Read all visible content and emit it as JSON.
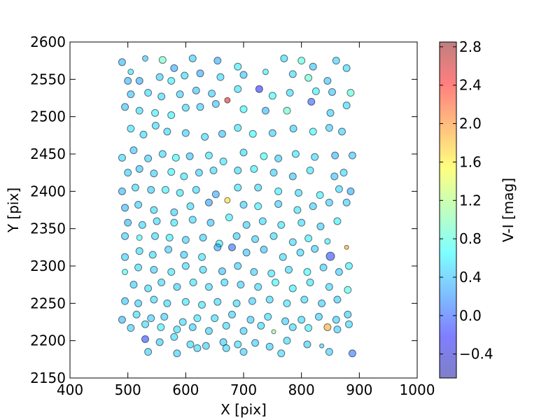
{
  "chart_data": {
    "type": "scatter",
    "xlabel": "X [pix]",
    "ylabel": "Y [pix]",
    "xlim": [
      400,
      1000
    ],
    "ylim": [
      2150,
      2600
    ],
    "xticks": [
      400,
      500,
      600,
      700,
      800,
      900,
      1000
    ],
    "yticks": [
      2150,
      2200,
      2250,
      2300,
      2350,
      2400,
      2450,
      2500,
      2550,
      2600
    ],
    "colorbar": {
      "label": "V-I [mag]",
      "range": [
        -0.65,
        2.85
      ],
      "ticks": [
        -0.4,
        0.0,
        0.4,
        0.8,
        1.2,
        1.6,
        2.0,
        2.4,
        2.8
      ],
      "colormap": "jet"
    },
    "grid": false,
    "points": [
      [
        490,
        2573,
        0.35,
        5
      ],
      [
        505,
        2560,
        0.55,
        4
      ],
      [
        530,
        2578,
        0.4,
        4
      ],
      [
        560,
        2576,
        0.9,
        5
      ],
      [
        580,
        2565,
        0.3,
        5
      ],
      [
        612,
        2578,
        0.45,
        5
      ],
      [
        655,
        2575,
        0.3,
        5
      ],
      [
        690,
        2567,
        0.6,
        5
      ],
      [
        770,
        2578,
        0.5,
        5
      ],
      [
        800,
        2575,
        0.8,
        5
      ],
      [
        820,
        2567,
        0.4,
        5
      ],
      [
        860,
        2575,
        0.45,
        5
      ],
      [
        878,
        2565,
        0.5,
        5
      ],
      [
        500,
        2548,
        0.35,
        5
      ],
      [
        520,
        2548,
        0.3,
        5
      ],
      [
        555,
        2553,
        0.45,
        5
      ],
      [
        575,
        2548,
        0.6,
        5
      ],
      [
        598,
        2555,
        0.5,
        5
      ],
      [
        625,
        2558,
        0.3,
        5
      ],
      [
        660,
        2553,
        0.5,
        5
      ],
      [
        700,
        2556,
        0.4,
        5
      ],
      [
        738,
        2560,
        0.6,
        4
      ],
      [
        785,
        2557,
        0.5,
        5
      ],
      [
        812,
        2552,
        0.85,
        5
      ],
      [
        845,
        2548,
        0.4,
        5
      ],
      [
        505,
        2530,
        0.4,
        5
      ],
      [
        535,
        2532,
        0.5,
        5
      ],
      [
        558,
        2527,
        0.5,
        5
      ],
      [
        590,
        2530,
        0.45,
        5
      ],
      [
        618,
        2535,
        0.4,
        5
      ],
      [
        645,
        2531,
        0.45,
        5
      ],
      [
        690,
        2537,
        0.55,
        5
      ],
      [
        727,
        2537,
        -0.2,
        5
      ],
      [
        750,
        2528,
        0.65,
        5
      ],
      [
        780,
        2532,
        0.5,
        5
      ],
      [
        825,
        2534,
        0.6,
        5
      ],
      [
        853,
        2533,
        0.4,
        5
      ],
      [
        885,
        2532,
        0.8,
        5
      ],
      [
        495,
        2513,
        0.4,
        5
      ],
      [
        520,
        2508,
        0.5,
        5
      ],
      [
        547,
        2505,
        0.6,
        5
      ],
      [
        575,
        2502,
        0.6,
        5
      ],
      [
        600,
        2512,
        0.5,
        5
      ],
      [
        625,
        2513,
        0.45,
        5
      ],
      [
        652,
        2517,
        0.4,
        5
      ],
      [
        672,
        2522,
        2.6,
        4
      ],
      [
        700,
        2510,
        0.65,
        5
      ],
      [
        738,
        2508,
        0.35,
        5
      ],
      [
        775,
        2508,
        0.85,
        5
      ],
      [
        817,
        2520,
        0.0,
        5
      ],
      [
        850,
        2505,
        0.45,
        5
      ],
      [
        878,
        2515,
        0.5,
        5
      ],
      [
        505,
        2484,
        0.55,
        5
      ],
      [
        527,
        2476,
        0.5,
        5
      ],
      [
        548,
        2488,
        0.5,
        5
      ],
      [
        568,
        2480,
        0.5,
        5
      ],
      [
        600,
        2478,
        0.45,
        5
      ],
      [
        633,
        2473,
        0.5,
        5
      ],
      [
        663,
        2477,
        0.4,
        5
      ],
      [
        690,
        2485,
        0.55,
        5
      ],
      [
        716,
        2477,
        0.65,
        5
      ],
      [
        750,
        2478,
        0.45,
        5
      ],
      [
        786,
        2484,
        0.45,
        5
      ],
      [
        820,
        2480,
        0.65,
        5
      ],
      [
        848,
        2485,
        0.45,
        5
      ],
      [
        870,
        2480,
        0.45,
        5
      ],
      [
        490,
        2445,
        0.5,
        5
      ],
      [
        510,
        2455,
        0.4,
        5
      ],
      [
        535,
        2444,
        0.45,
        5
      ],
      [
        560,
        2450,
        0.5,
        5
      ],
      [
        583,
        2445,
        0.65,
        5
      ],
      [
        607,
        2447,
        0.4,
        5
      ],
      [
        640,
        2448,
        0.55,
        5
      ],
      [
        665,
        2440,
        0.55,
        5
      ],
      [
        700,
        2452,
        0.5,
        5
      ],
      [
        735,
        2447,
        0.7,
        5
      ],
      [
        760,
        2444,
        0.45,
        5
      ],
      [
        790,
        2450,
        0.55,
        5
      ],
      [
        823,
        2446,
        0.5,
        5
      ],
      [
        858,
        2448,
        0.35,
        5
      ],
      [
        888,
        2448,
        0.4,
        5
      ],
      [
        500,
        2425,
        0.45,
        5
      ],
      [
        520,
        2430,
        0.4,
        5
      ],
      [
        545,
        2424,
        0.45,
        5
      ],
      [
        575,
        2426,
        0.6,
        5
      ],
      [
        597,
        2420,
        0.55,
        5
      ],
      [
        623,
        2425,
        0.45,
        5
      ],
      [
        648,
        2428,
        0.5,
        5
      ],
      [
        690,
        2428,
        0.5,
        5
      ],
      [
        718,
        2430,
        0.6,
        5
      ],
      [
        752,
        2425,
        0.45,
        5
      ],
      [
        785,
        2420,
        0.4,
        5
      ],
      [
        815,
        2428,
        0.55,
        5
      ],
      [
        857,
        2420,
        0.4,
        5
      ],
      [
        873,
        2425,
        0.5,
        5
      ],
      [
        490,
        2400,
        0.35,
        5
      ],
      [
        513,
        2405,
        0.5,
        5
      ],
      [
        540,
        2402,
        0.45,
        5
      ],
      [
        565,
        2402,
        0.6,
        5
      ],
      [
        590,
        2398,
        0.55,
        5
      ],
      [
        618,
        2402,
        0.5,
        5
      ],
      [
        652,
        2396,
        0.3,
        5
      ],
      [
        690,
        2405,
        0.55,
        5
      ],
      [
        725,
        2405,
        0.5,
        5
      ],
      [
        760,
        2400,
        0.6,
        5
      ],
      [
        795,
        2398,
        0.5,
        5
      ],
      [
        832,
        2395,
        0.6,
        5
      ],
      [
        865,
        2403,
        0.5,
        5
      ],
      [
        885,
        2400,
        0.3,
        5
      ],
      [
        495,
        2378,
        0.35,
        5
      ],
      [
        518,
        2382,
        0.45,
        5
      ],
      [
        545,
        2375,
        0.5,
        5
      ],
      [
        580,
        2372,
        0.45,
        5
      ],
      [
        608,
        2380,
        0.5,
        5
      ],
      [
        640,
        2385,
        0.25,
        5
      ],
      [
        672,
        2388,
        1.7,
        4
      ],
      [
        700,
        2382,
        0.45,
        5
      ],
      [
        725,
        2380,
        0.6,
        5
      ],
      [
        760,
        2383,
        0.45,
        5
      ],
      [
        793,
        2375,
        0.55,
        5
      ],
      [
        820,
        2380,
        0.45,
        5
      ],
      [
        848,
        2385,
        0.45,
        5
      ],
      [
        878,
        2385,
        0.45,
        5
      ],
      [
        500,
        2358,
        0.35,
        5
      ],
      [
        525,
        2355,
        0.5,
        5
      ],
      [
        550,
        2360,
        0.5,
        5
      ],
      [
        580,
        2358,
        0.55,
        5
      ],
      [
        612,
        2362,
        0.5,
        5
      ],
      [
        643,
        2358,
        0.4,
        5
      ],
      [
        675,
        2365,
        0.6,
        5
      ],
      [
        705,
        2355,
        0.45,
        5
      ],
      [
        733,
        2360,
        0.5,
        5
      ],
      [
        765,
        2355,
        0.55,
        5
      ],
      [
        800,
        2358,
        0.5,
        5
      ],
      [
        833,
        2353,
        0.45,
        5
      ],
      [
        862,
        2360,
        0.6,
        5
      ],
      [
        495,
        2340,
        0.45,
        5
      ],
      [
        520,
        2338,
        0.7,
        4
      ],
      [
        547,
        2340,
        0.5,
        5
      ],
      [
        572,
        2338,
        0.6,
        5
      ],
      [
        600,
        2335,
        0.45,
        5
      ],
      [
        630,
        2338,
        0.45,
        5
      ],
      [
        658,
        2330,
        0.6,
        5
      ],
      [
        688,
        2340,
        0.45,
        5
      ],
      [
        720,
        2336,
        0.45,
        5
      ],
      [
        752,
        2340,
        0.5,
        5
      ],
      [
        785,
        2332,
        0.5,
        5
      ],
      [
        812,
        2337,
        0.6,
        5
      ],
      [
        845,
        2333,
        0.6,
        4
      ],
      [
        495,
        2312,
        0.45,
        5
      ],
      [
        520,
        2320,
        0.5,
        5
      ],
      [
        543,
        2315,
        0.5,
        5
      ],
      [
        570,
        2322,
        0.45,
        5
      ],
      [
        597,
        2315,
        0.45,
        5
      ],
      [
        628,
        2312,
        0.55,
        5
      ],
      [
        655,
        2325,
        0.3,
        5
      ],
      [
        680,
        2325,
        0.05,
        5
      ],
      [
        705,
        2318,
        0.4,
        5
      ],
      [
        735,
        2322,
        0.4,
        5
      ],
      [
        768,
        2312,
        0.5,
        5
      ],
      [
        798,
        2318,
        0.5,
        5
      ],
      [
        823,
        2323,
        0.45,
        5
      ],
      [
        850,
        2313,
        -0.1,
        6
      ],
      [
        878,
        2325,
        1.9,
        3
      ],
      [
        495,
        2292,
        0.7,
        4
      ],
      [
        518,
        2298,
        0.5,
        5
      ],
      [
        545,
        2295,
        0.45,
        5
      ],
      [
        575,
        2292,
        0.55,
        5
      ],
      [
        600,
        2300,
        0.5,
        5
      ],
      [
        630,
        2295,
        0.5,
        5
      ],
      [
        663,
        2293,
        0.4,
        5
      ],
      [
        690,
        2300,
        0.45,
        5
      ],
      [
        718,
        2292,
        0.45,
        5
      ],
      [
        748,
        2290,
        0.55,
        5
      ],
      [
        778,
        2295,
        0.5,
        5
      ],
      [
        810,
        2292,
        0.65,
        5
      ],
      [
        838,
        2298,
        0.45,
        5
      ],
      [
        865,
        2292,
        0.45,
        5
      ],
      [
        882,
        2300,
        0.6,
        5
      ],
      [
        510,
        2275,
        0.45,
        5
      ],
      [
        535,
        2270,
        0.5,
        5
      ],
      [
        558,
        2278,
        0.5,
        5
      ],
      [
        585,
        2272,
        0.45,
        5
      ],
      [
        613,
        2278,
        0.55,
        5
      ],
      [
        640,
        2272,
        0.5,
        5
      ],
      [
        667,
        2278,
        0.5,
        5
      ],
      [
        695,
        2275,
        0.45,
        5
      ],
      [
        725,
        2272,
        0.5,
        5
      ],
      [
        755,
        2278,
        0.65,
        5
      ],
      [
        785,
        2270,
        0.6,
        5
      ],
      [
        815,
        2278,
        0.55,
        5
      ],
      [
        848,
        2272,
        0.5,
        5
      ],
      [
        880,
        2268,
        0.75,
        5
      ],
      [
        495,
        2253,
        0.4,
        5
      ],
      [
        518,
        2250,
        0.45,
        5
      ],
      [
        545,
        2255,
        0.5,
        5
      ],
      [
        568,
        2250,
        0.5,
        5
      ],
      [
        600,
        2252,
        0.55,
        5
      ],
      [
        628,
        2248,
        0.55,
        5
      ],
      [
        655,
        2252,
        0.5,
        5
      ],
      [
        688,
        2250,
        0.5,
        5
      ],
      [
        715,
        2253,
        0.45,
        5
      ],
      [
        745,
        2255,
        0.5,
        5
      ],
      [
        775,
        2250,
        0.55,
        5
      ],
      [
        805,
        2255,
        0.5,
        5
      ],
      [
        835,
        2250,
        0.45,
        5
      ],
      [
        862,
        2255,
        0.45,
        5
      ],
      [
        490,
        2228,
        0.35,
        5
      ],
      [
        515,
        2235,
        0.5,
        5
      ],
      [
        540,
        2230,
        0.45,
        5
      ],
      [
        563,
        2232,
        0.45,
        5
      ],
      [
        595,
        2225,
        0.5,
        5
      ],
      [
        620,
        2230,
        0.55,
        5
      ],
      [
        650,
        2230,
        0.5,
        5
      ],
      [
        680,
        2235,
        0.45,
        5
      ],
      [
        712,
        2228,
        0.45,
        5
      ],
      [
        742,
        2232,
        0.5,
        5
      ],
      [
        772,
        2226,
        0.45,
        5
      ],
      [
        800,
        2228,
        0.5,
        5
      ],
      [
        830,
        2232,
        0.45,
        5
      ],
      [
        860,
        2228,
        0.45,
        5
      ],
      [
        880,
        2235,
        0.45,
        5
      ],
      [
        505,
        2217,
        0.45,
        5
      ],
      [
        530,
        2222,
        0.5,
        5
      ],
      [
        557,
        2218,
        0.6,
        5
      ],
      [
        585,
        2215,
        0.5,
        5
      ],
      [
        612,
        2218,
        0.45,
        5
      ],
      [
        640,
        2213,
        0.45,
        5
      ],
      [
        670,
        2220,
        0.5,
        5
      ],
      [
        700,
        2213,
        0.45,
        5
      ],
      [
        730,
        2220,
        0.5,
        5
      ],
      [
        752,
        2212,
        1.1,
        3
      ],
      [
        785,
        2218,
        0.5,
        5
      ],
      [
        812,
        2217,
        0.6,
        5
      ],
      [
        845,
        2218,
        1.9,
        5
      ],
      [
        862,
        2215,
        0.45,
        5
      ],
      [
        882,
        2222,
        0.5,
        5
      ],
      [
        530,
        2202,
        -0.1,
        5
      ],
      [
        555,
        2198,
        0.45,
        5
      ],
      [
        580,
        2205,
        0.5,
        5
      ],
      [
        608,
        2195,
        0.5,
        5
      ],
      [
        635,
        2193,
        0.45,
        5
      ],
      [
        665,
        2198,
        0.45,
        5
      ],
      [
        690,
        2195,
        0.5,
        5
      ],
      [
        720,
        2197,
        0.45,
        5
      ],
      [
        745,
        2192,
        0.45,
        5
      ],
      [
        775,
        2200,
        0.5,
        5
      ],
      [
        810,
        2195,
        0.45,
        5
      ],
      [
        835,
        2193,
        0.5,
        3
      ],
      [
        535,
        2185,
        0.45,
        5
      ],
      [
        585,
        2183,
        0.45,
        5
      ],
      [
        620,
        2190,
        0.5,
        5
      ],
      [
        670,
        2190,
        0.5,
        5
      ],
      [
        700,
        2185,
        0.45,
        5
      ],
      [
        765,
        2183,
        0.5,
        5
      ],
      [
        848,
        2185,
        0.45,
        5
      ],
      [
        888,
        2183,
        0.1,
        5
      ]
    ]
  }
}
